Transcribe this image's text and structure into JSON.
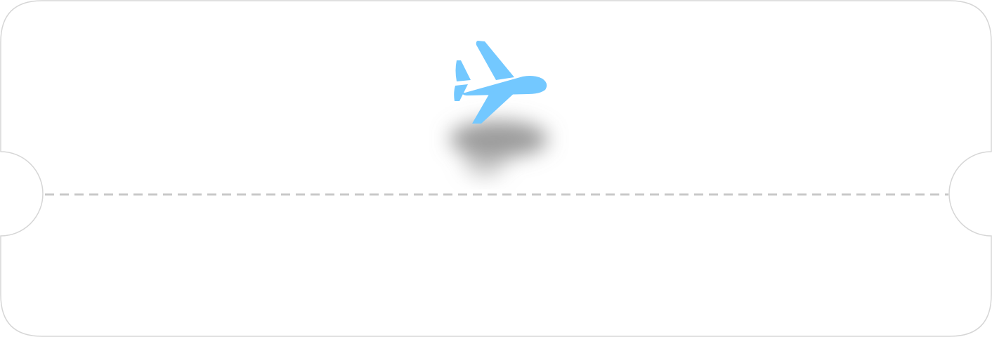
{
  "ticket": {
    "icon": "airplane-icon",
    "accent_color": "#73C8FF",
    "outline_color": "#D6D6D6",
    "perforation_color": "#C8C8C8",
    "shadow_color": "#8A8A8A",
    "background_color": "#FFFFFF"
  }
}
